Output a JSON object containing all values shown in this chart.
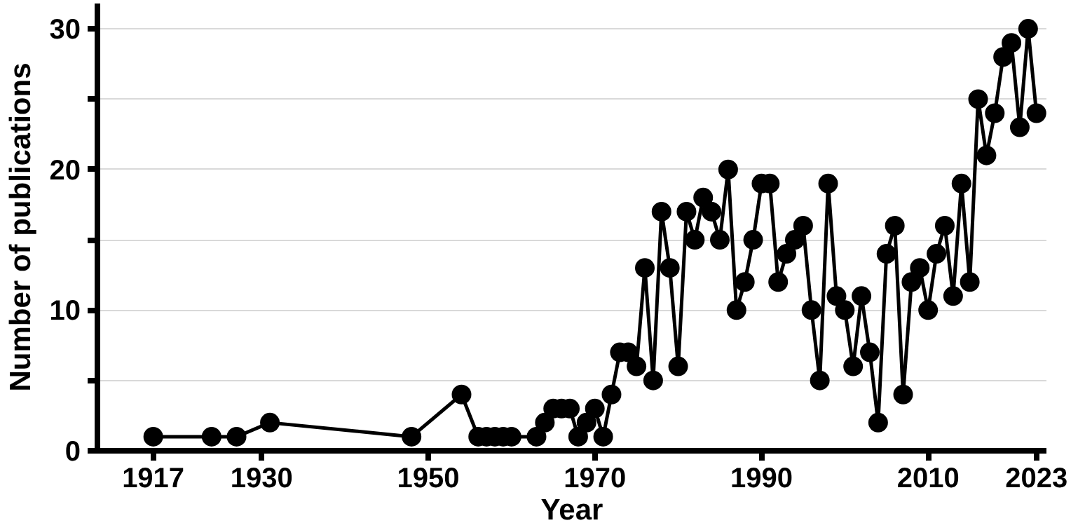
{
  "chart_data": {
    "type": "line",
    "xlabel": "Year",
    "ylabel": "Number of publications",
    "x": [
      1917,
      1924,
      1927,
      1931,
      1948,
      1954,
      1956,
      1957,
      1958,
      1959,
      1960,
      1963,
      1964,
      1965,
      1966,
      1967,
      1968,
      1969,
      1970,
      1971,
      1972,
      1973,
      1974,
      1975,
      1976,
      1977,
      1978,
      1979,
      1980,
      1981,
      1982,
      1983,
      1984,
      1985,
      1986,
      1987,
      1988,
      1989,
      1990,
      1991,
      1992,
      1993,
      1994,
      1995,
      1996,
      1997,
      1998,
      1999,
      2000,
      2001,
      2002,
      2003,
      2004,
      2005,
      2006,
      2007,
      2008,
      2009,
      2010,
      2011,
      2012,
      2013,
      2014,
      2015,
      2016,
      2017,
      2018,
      2019,
      2020,
      2021,
      2022,
      2023
    ],
    "series": [
      {
        "color": "#000000",
        "values": [
          1,
          1,
          1,
          2,
          1,
          4,
          1,
          1,
          1,
          1,
          1,
          1,
          2,
          3,
          3,
          3,
          1,
          2,
          3,
          1,
          4,
          7,
          7,
          6,
          13,
          5,
          17,
          13,
          6,
          17,
          15,
          18,
          17,
          15,
          20,
          10,
          12,
          15,
          19,
          19,
          12,
          14,
          15,
          16,
          10,
          5,
          19,
          11,
          10,
          6,
          11,
          7,
          2,
          14,
          16,
          4,
          12,
          13,
          10,
          14,
          16,
          11,
          19,
          12,
          25,
          21,
          24,
          28,
          29,
          23,
          30,
          24
        ]
      }
    ],
    "xlim": [
      1910.3,
      2024.2
    ],
    "xticks": [
      1917,
      1930,
      1950,
      1970,
      1990,
      2010,
      2023
    ],
    "ylim": [
      0,
      31.8
    ],
    "yticks": [
      0,
      {
        "value": 5,
        "label": null
      },
      10,
      {
        "value": 15,
        "label": null
      },
      20,
      {
        "value": 25,
        "label": null
      },
      30
    ],
    "grid": "y",
    "marker": "circle",
    "line_style": "solid"
  }
}
